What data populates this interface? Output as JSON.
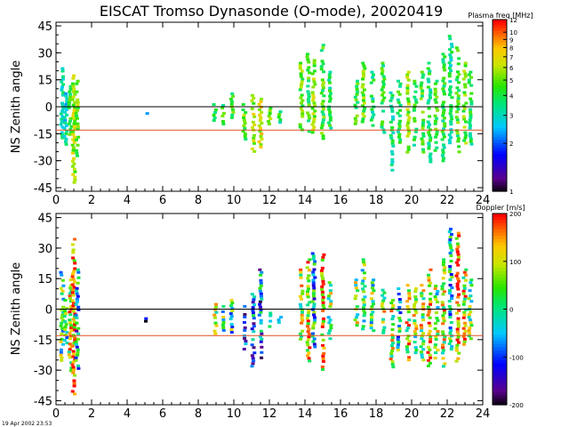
{
  "title": "EISCAT Tromso Dynasonde (O-mode),  20020419",
  "timestamp": "19 Apr 2002 23:53",
  "chart_data": [
    {
      "type": "heatmap",
      "name": "plasma-frequency-panel",
      "ylabel": "NS Zenith angle",
      "xlabel": "",
      "xlim": [
        0,
        24
      ],
      "ylim": [
        -47,
        47
      ],
      "x_ticks": [
        0,
        2,
        4,
        6,
        8,
        10,
        12,
        14,
        16,
        18,
        20,
        22,
        24
      ],
      "y_ticks": [
        45,
        30,
        15,
        0,
        -15,
        -30,
        -45
      ],
      "zero_line": {
        "y": 0,
        "color": "#000000"
      },
      "reference_line": {
        "y": -13,
        "color": "#e05020"
      },
      "colorbar": {
        "title": "Plasma freq [MHz]",
        "scale": "log",
        "range": [
          1,
          12
        ],
        "tick_labels": [
          "12",
          "10",
          "9",
          "8",
          "7",
          "6",
          "5",
          "4",
          "3",
          "2",
          "1"
        ],
        "tick_values": [
          12,
          10,
          9,
          8,
          7,
          6,
          5,
          4,
          3,
          2,
          1
        ]
      },
      "columns": [
        {
          "x": 0.35,
          "ymin": -18,
          "ymax": 22,
          "value": 3.2
        },
        {
          "x": 0.55,
          "ymin": -22,
          "ymax": 8,
          "value": 3.0
        },
        {
          "x": 0.8,
          "ymin": -15,
          "ymax": 12,
          "value": 4.5
        },
        {
          "x": 1.0,
          "ymin": -42,
          "ymax": 18,
          "value": 6.0
        },
        {
          "x": 1.2,
          "ymin": -28,
          "ymax": 15,
          "value": 5.0
        },
        {
          "x": 5.1,
          "ymin": -4,
          "ymax": -3,
          "value": 3.0
        },
        {
          "x": 8.95,
          "ymin": -8,
          "ymax": 2,
          "value": 4.0
        },
        {
          "x": 9.4,
          "ymin": -10,
          "ymax": 3,
          "value": 4.2
        },
        {
          "x": 9.9,
          "ymin": -8,
          "ymax": 8,
          "value": 4.5
        },
        {
          "x": 10.6,
          "ymin": -18,
          "ymax": 2,
          "value": 4.8
        },
        {
          "x": 11.1,
          "ymin": -25,
          "ymax": 10,
          "value": 6.0
        },
        {
          "x": 11.5,
          "ymin": -22,
          "ymax": 5,
          "value": 6.5
        },
        {
          "x": 12.0,
          "ymin": -10,
          "ymax": 0,
          "value": 5.0
        },
        {
          "x": 12.6,
          "ymin": -8,
          "ymax": -2,
          "value": 4.0
        },
        {
          "x": 13.8,
          "ymin": -15,
          "ymax": 25,
          "value": 5.0
        },
        {
          "x": 14.2,
          "ymin": -18,
          "ymax": 30,
          "value": 4.5
        },
        {
          "x": 14.5,
          "ymin": -15,
          "ymax": 28,
          "value": 5.5
        },
        {
          "x": 15.0,
          "ymin": -18,
          "ymax": 35,
          "value": 4.5
        },
        {
          "x": 15.4,
          "ymin": -12,
          "ymax": 20,
          "value": 4.0
        },
        {
          "x": 16.9,
          "ymin": -10,
          "ymax": 15,
          "value": 4.5
        },
        {
          "x": 17.3,
          "ymin": -8,
          "ymax": 25,
          "value": 5.0
        },
        {
          "x": 17.8,
          "ymin": -12,
          "ymax": 20,
          "value": 3.8
        },
        {
          "x": 18.4,
          "ymin": -15,
          "ymax": 25,
          "value": 4.2
        },
        {
          "x": 18.9,
          "ymin": -35,
          "ymax": 10,
          "value": 3.5
        },
        {
          "x": 19.3,
          "ymin": -20,
          "ymax": 15,
          "value": 4.0
        },
        {
          "x": 19.8,
          "ymin": -25,
          "ymax": 20,
          "value": 5.5
        },
        {
          "x": 20.2,
          "ymin": -22,
          "ymax": 15,
          "value": 4.0
        },
        {
          "x": 20.6,
          "ymin": -25,
          "ymax": 20,
          "value": 4.5
        },
        {
          "x": 21.0,
          "ymin": -30,
          "ymax": 25,
          "value": 3.8
        },
        {
          "x": 21.4,
          "ymin": -25,
          "ymax": 15,
          "value": 4.5
        },
        {
          "x": 21.8,
          "ymin": -30,
          "ymax": 30,
          "value": 4.0
        },
        {
          "x": 22.2,
          "ymin": -20,
          "ymax": 40,
          "value": 3.5
        },
        {
          "x": 22.6,
          "ymin": -25,
          "ymax": 35,
          "value": 4.5
        },
        {
          "x": 23.0,
          "ymin": -20,
          "ymax": 25,
          "value": 5.0
        },
        {
          "x": 23.3,
          "ymin": -22,
          "ymax": 20,
          "value": 4.0
        }
      ]
    },
    {
      "type": "heatmap",
      "name": "doppler-panel",
      "ylabel": "NS Zenith angle",
      "xlabel": "",
      "xlim": [
        0,
        24
      ],
      "ylim": [
        -47,
        47
      ],
      "x_ticks": [
        0,
        2,
        4,
        6,
        8,
        10,
        12,
        14,
        16,
        18,
        20,
        22,
        24
      ],
      "x_tick_labels": [
        "0",
        "2",
        "4",
        "6",
        "8",
        "10",
        "12",
        "14",
        "16",
        "18",
        "20",
        "22",
        "24"
      ],
      "y_ticks": [
        45,
        30,
        15,
        0,
        -15,
        -30,
        -45
      ],
      "zero_line": {
        "y": 0,
        "color": "#000000"
      },
      "reference_line": {
        "y": -13,
        "color": "#e05020"
      },
      "colorbar": {
        "title": "Doppler [m/s]",
        "scale": "linear",
        "range": [
          -200,
          200
        ],
        "tick_labels": [
          "200",
          "100",
          "0",
          "-100",
          "-200"
        ],
        "tick_values": [
          200,
          100,
          0,
          -100,
          -200
        ]
      },
      "columns": [
        {
          "x": 0.35,
          "ymin": -25,
          "ymax": 20,
          "value": 20
        },
        {
          "x": 0.55,
          "ymin": -18,
          "ymax": 5,
          "value": -10
        },
        {
          "x": 0.8,
          "ymin": -30,
          "ymax": 15,
          "value": 80
        },
        {
          "x": 1.0,
          "ymin": -42,
          "ymax": 35,
          "value": 150
        },
        {
          "x": 1.2,
          "ymin": -30,
          "ymax": 20,
          "value": -40
        },
        {
          "x": 5.1,
          "ymin": -6,
          "ymax": -4,
          "value": -200
        },
        {
          "x": 8.95,
          "ymin": -12,
          "ymax": 3,
          "value": 40
        },
        {
          "x": 9.4,
          "ymin": -10,
          "ymax": 2,
          "value": 10
        },
        {
          "x": 9.9,
          "ymin": -12,
          "ymax": 5,
          "value": 20
        },
        {
          "x": 10.6,
          "ymin": -20,
          "ymax": 2,
          "value": -60
        },
        {
          "x": 11.1,
          "ymin": -28,
          "ymax": 8,
          "value": -90
        },
        {
          "x": 11.5,
          "ymin": -25,
          "ymax": 20,
          "value": -70
        },
        {
          "x": 12.0,
          "ymin": -10,
          "ymax": 0,
          "value": 30
        },
        {
          "x": 12.6,
          "ymin": -8,
          "ymax": -2,
          "value": 50
        },
        {
          "x": 13.8,
          "ymin": -15,
          "ymax": 20,
          "value": 60
        },
        {
          "x": 14.2,
          "ymin": -25,
          "ymax": 25,
          "value": 120
        },
        {
          "x": 14.5,
          "ymin": -20,
          "ymax": 28,
          "value": -20
        },
        {
          "x": 15.0,
          "ymin": -30,
          "ymax": 30,
          "value": 150
        },
        {
          "x": 15.4,
          "ymin": -15,
          "ymax": 15,
          "value": 30
        },
        {
          "x": 16.9,
          "ymin": -8,
          "ymax": 15,
          "value": 40
        },
        {
          "x": 17.3,
          "ymin": -10,
          "ymax": 25,
          "value": 10
        },
        {
          "x": 17.8,
          "ymin": -12,
          "ymax": 15,
          "value": 30
        },
        {
          "x": 18.4,
          "ymin": -15,
          "ymax": 10,
          "value": 60
        },
        {
          "x": 18.9,
          "ymin": -28,
          "ymax": 5,
          "value": 90
        },
        {
          "x": 19.3,
          "ymin": -20,
          "ymax": 12,
          "value": -10
        },
        {
          "x": 19.8,
          "ymin": -25,
          "ymax": 15,
          "value": 100
        },
        {
          "x": 20.2,
          "ymin": -22,
          "ymax": 12,
          "value": 60
        },
        {
          "x": 20.6,
          "ymin": -25,
          "ymax": 15,
          "value": 80
        },
        {
          "x": 21.0,
          "ymin": -28,
          "ymax": 20,
          "value": 120
        },
        {
          "x": 21.4,
          "ymin": -25,
          "ymax": 12,
          "value": 50
        },
        {
          "x": 21.8,
          "ymin": -30,
          "ymax": 25,
          "value": 90
        },
        {
          "x": 22.2,
          "ymin": -20,
          "ymax": 40,
          "value": -20
        },
        {
          "x": 22.6,
          "ymin": -25,
          "ymax": 38,
          "value": 170
        },
        {
          "x": 23.0,
          "ymin": -18,
          "ymax": 20,
          "value": 100
        },
        {
          "x": 23.3,
          "ymin": -15,
          "ymax": 15,
          "value": 40
        }
      ]
    }
  ]
}
